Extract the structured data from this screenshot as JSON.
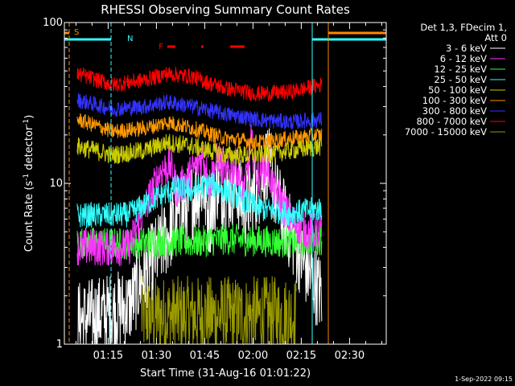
{
  "chart_data": {
    "type": "line",
    "title": "RHESSI Observing Summary Count Rates",
    "xlabel": "Start Time (31-Aug-16 01:01:22)",
    "ylabel": "Count Rate (s⁻¹ detector⁻¹)",
    "ylabel_parts": {
      "main": "Count Rate (s",
      "sup1": "-1",
      "mid": " detector",
      "sup2": "-1",
      "end": ")"
    },
    "yscale": "log",
    "ylim": [
      1,
      100
    ],
    "xlim_minutes": [
      0,
      100
    ],
    "x_ticks": [
      {
        "label": "01:15",
        "min": 13.6
      },
      {
        "label": "01:30",
        "min": 28.6
      },
      {
        "label": "01:45",
        "min": 43.6
      },
      {
        "label": "02:00",
        "min": 58.6
      },
      {
        "label": "02:15",
        "min": 73.6
      },
      {
        "label": "02:30",
        "min": 88.6
      }
    ],
    "y_ticks": [
      {
        "label": "1",
        "value": 1
      },
      {
        "label": "10",
        "value": 10
      },
      {
        "label": "100",
        "value": 100
      }
    ],
    "legend": {
      "header": [
        "Det 1,3, FDecim 1,",
        "Att 0"
      ],
      "placement": "right"
    },
    "series": [
      {
        "name": "3 - 6 keV",
        "color": "#ffffff",
        "min_start": 4,
        "min_end": 80,
        "profile": [
          [
            4,
            1.4
          ],
          [
            20,
            1.7
          ],
          [
            25,
            2.8
          ],
          [
            30,
            4
          ],
          [
            35,
            6
          ],
          [
            40,
            8
          ],
          [
            43,
            10
          ],
          [
            45,
            6
          ],
          [
            48,
            11
          ],
          [
            50,
            8
          ],
          [
            53,
            10
          ],
          [
            56,
            7
          ],
          [
            60,
            9
          ],
          [
            63,
            14
          ],
          [
            66,
            8
          ],
          [
            70,
            5
          ],
          [
            75,
            3
          ],
          [
            80,
            2
          ]
        ],
        "noise": 0.25
      },
      {
        "name": "6 - 12 keV",
        "color": "#ff33ff",
        "min_start": 4,
        "min_end": 80,
        "profile": [
          [
            4,
            4
          ],
          [
            20,
            4
          ],
          [
            25,
            7
          ],
          [
            30,
            12
          ],
          [
            33,
            13
          ],
          [
            35,
            9
          ],
          [
            40,
            12
          ],
          [
            43,
            15
          ],
          [
            45,
            10
          ],
          [
            48,
            15
          ],
          [
            50,
            11
          ],
          [
            53,
            13
          ],
          [
            56,
            9
          ],
          [
            58,
            18
          ],
          [
            60,
            11
          ],
          [
            63,
            13
          ],
          [
            65,
            9
          ],
          [
            67,
            8
          ],
          [
            70,
            6
          ],
          [
            75,
            5
          ],
          [
            80,
            5
          ]
        ],
        "noise": 0.12
      },
      {
        "name": "12 - 25 keV",
        "color": "#33ff33",
        "min_start": 4,
        "min_end": 80,
        "profile": [
          [
            4,
            4.3
          ],
          [
            20,
            4.2
          ],
          [
            30,
            4.4
          ],
          [
            40,
            4.3
          ],
          [
            50,
            4.5
          ],
          [
            60,
            4.4
          ],
          [
            70,
            4.3
          ],
          [
            80,
            4.5
          ]
        ],
        "noise": 0.1
      },
      {
        "name": "25 - 50 keV",
        "color": "#33ffff",
        "min_start": 4,
        "min_end": 80,
        "profile": [
          [
            4,
            6.3
          ],
          [
            20,
            6.4
          ],
          [
            28,
            8
          ],
          [
            35,
            9.5
          ],
          [
            40,
            9
          ],
          [
            45,
            10
          ],
          [
            50,
            9
          ],
          [
            55,
            8
          ],
          [
            60,
            7
          ],
          [
            70,
            6.5
          ],
          [
            80,
            7
          ]
        ],
        "noise": 0.08
      },
      {
        "name": "50 - 100 keV",
        "color": "#cccc00",
        "min_start": 4,
        "min_end": 80,
        "profile": [
          [
            4,
            17
          ],
          [
            15,
            15
          ],
          [
            25,
            16
          ],
          [
            32,
            18
          ],
          [
            40,
            17
          ],
          [
            50,
            15
          ],
          [
            60,
            15
          ],
          [
            70,
            16
          ],
          [
            80,
            17
          ]
        ],
        "noise": 0.06
      },
      {
        "name": "100 - 300 keV",
        "color": "#ff9900",
        "min_start": 4,
        "min_end": 80,
        "profile": [
          [
            4,
            25
          ],
          [
            15,
            21
          ],
          [
            25,
            22
          ],
          [
            32,
            24
          ],
          [
            40,
            22
          ],
          [
            50,
            19
          ],
          [
            60,
            18
          ],
          [
            70,
            19
          ],
          [
            80,
            20
          ]
        ],
        "noise": 0.05
      },
      {
        "name": "300 - 800 keV",
        "color": "#3333ff",
        "min_start": 4,
        "min_end": 80,
        "profile": [
          [
            4,
            33
          ],
          [
            15,
            29
          ],
          [
            25,
            30
          ],
          [
            32,
            32
          ],
          [
            40,
            30
          ],
          [
            50,
            27
          ],
          [
            60,
            25
          ],
          [
            70,
            24
          ],
          [
            80,
            25
          ]
        ],
        "noise": 0.05
      },
      {
        "name": "800 - 7000 keV",
        "color": "#ff0000",
        "min_start": 4,
        "min_end": 80,
        "profile": [
          [
            4,
            48
          ],
          [
            15,
            41
          ],
          [
            25,
            44
          ],
          [
            32,
            48
          ],
          [
            40,
            46
          ],
          [
            45,
            42
          ],
          [
            50,
            39
          ],
          [
            60,
            36
          ],
          [
            70,
            37
          ],
          [
            80,
            41
          ]
        ],
        "noise": 0.05
      },
      {
        "name": "7000 - 15000 keV",
        "color": "#999900",
        "min_start": 24,
        "min_end": 72,
        "profile": [
          [
            24,
            1.5
          ],
          [
            40,
            1.5
          ],
          [
            60,
            1.5
          ],
          [
            72,
            1.5
          ]
        ],
        "noise": 0.25
      }
    ],
    "flags": {
      "saa_label": "S",
      "night_label": "N",
      "flare_label": "F",
      "saa_intervals_min": [
        [
          0,
          1.5
        ],
        [
          82,
          100
        ]
      ],
      "night_intervals_min": [
        [
          0,
          14.5
        ],
        [
          77,
          100
        ]
      ],
      "flare_intervals_min": [
        [
          32,
          34.5
        ],
        [
          42.5,
          43.2
        ],
        [
          51.5,
          56
        ]
      ]
    },
    "stamp": "1-Sep-2022 09:15"
  },
  "colors": {
    "background": "#000000",
    "axes": "#ffffff",
    "saa": "#ff8800",
    "night": "#33ffff",
    "flare": "#ff0000"
  }
}
